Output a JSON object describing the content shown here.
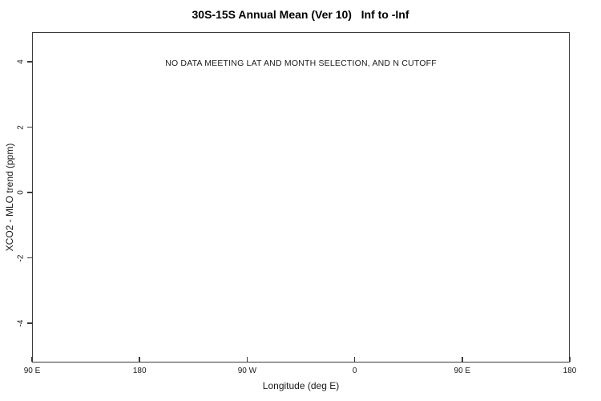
{
  "chart_data": {
    "type": "scatter",
    "title": "30S-15S Annual Mean (Ver 10)   Inf to -Inf",
    "xlabel": "Longitude (deg E)",
    "ylabel": "XCO2 - MLO trend (ppm)",
    "annotation": "NO DATA MEETING LAT AND MONTH SELECTION, AND N CUTOFF",
    "series": [],
    "x_ticks": [
      {
        "value": 90,
        "label": "90 E"
      },
      {
        "value": 180,
        "label": "180"
      },
      {
        "value": 270,
        "label": "90 W"
      },
      {
        "value": 360,
        "label": "0"
      },
      {
        "value": 450,
        "label": "90 E"
      },
      {
        "value": 540,
        "label": "180"
      }
    ],
    "y_ticks": [
      {
        "value": -4,
        "label": "-4"
      },
      {
        "value": -2,
        "label": "-2"
      },
      {
        "value": 0,
        "label": "0"
      },
      {
        "value": 2,
        "label": "2"
      },
      {
        "value": 4,
        "label": "4"
      }
    ],
    "xlim": [
      90,
      540
    ],
    "ylim": [
      -5.2,
      4.91
    ],
    "grid": false,
    "legend": null,
    "axis_color": "#3a3a3a",
    "text_color": "#000000",
    "background_color": "#ffffff"
  }
}
